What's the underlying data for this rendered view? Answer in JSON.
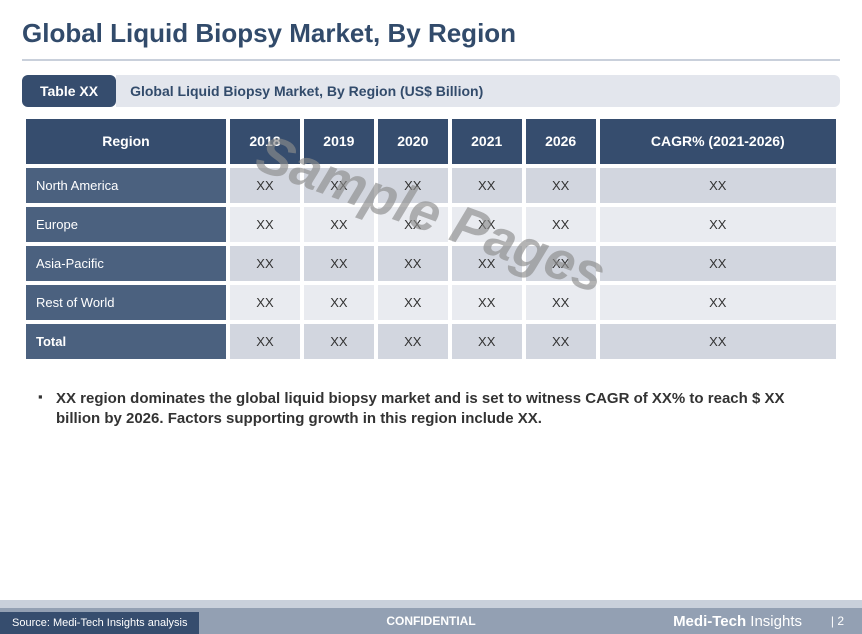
{
  "page": {
    "title": "Global Liquid Biopsy Market, By Region",
    "table_badge": "Table XX",
    "table_caption": "Global Liquid Biopsy Market, By Region (US$ Billion)",
    "watermark": "Sample Pages",
    "bullet_mark": "▪",
    "bullet_text": "XX region dominates the global liquid biopsy market and is set to witness CAGR of XX% to reach $ XX billion by 2026. Factors supporting growth in this region include XX.",
    "confidential": "CONFIDENTIAL",
    "brand_bold": "Medi-Tech",
    "brand_light": " Insights",
    "page_number": "| 2",
    "source": "Source: Medi-Tech Insights analysis"
  },
  "table": {
    "columns": [
      "Region",
      "2018",
      "2019",
      "2020",
      "2021",
      "2026",
      "CAGR% (2021-2026)"
    ],
    "rows": [
      {
        "label": "North America",
        "values": [
          "XX",
          "XX",
          "XX",
          "XX",
          "XX",
          "XX"
        ]
      },
      {
        "label": "Europe",
        "values": [
          "XX",
          "XX",
          "XX",
          "XX",
          "XX",
          "XX"
        ]
      },
      {
        "label": "Asia-Pacific",
        "values": [
          "XX",
          "XX",
          "XX",
          "XX",
          "XX",
          "XX"
        ]
      },
      {
        "label": "Rest of World",
        "values": [
          "XX",
          "XX",
          "XX",
          "XX",
          "XX",
          "XX"
        ]
      },
      {
        "label": "Total",
        "values": [
          "XX",
          "XX",
          "XX",
          "XX",
          "XX",
          "XX"
        ]
      }
    ],
    "header_bg": "#364d6e",
    "rowhead_bg": "#4b617f",
    "row_odd_bg": "#d2d6df",
    "row_even_bg": "#e9ebf0"
  }
}
